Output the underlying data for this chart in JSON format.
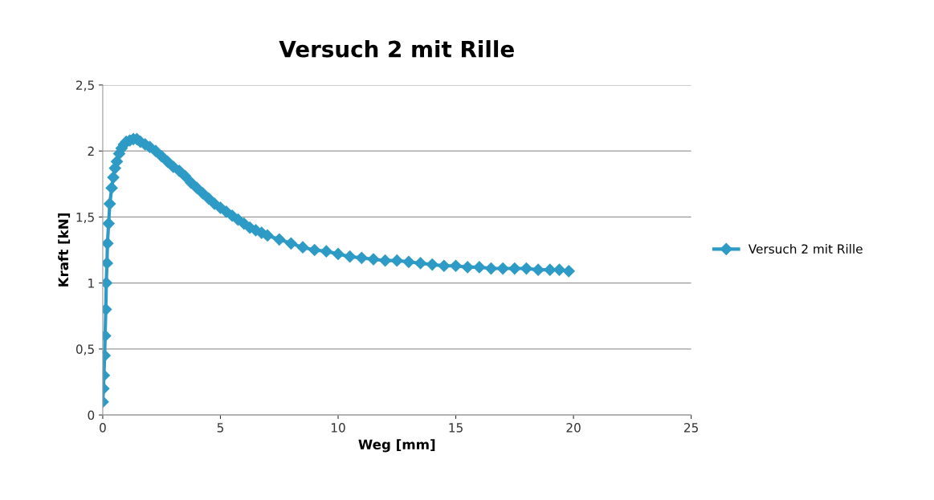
{
  "chart_data": {
    "type": "line",
    "title": "Versuch 2 mit Rille",
    "xlabel": "Weg [mm]",
    "ylabel": "Kraft [kN]",
    "xlim": [
      0,
      25
    ],
    "xticks": [
      0,
      5,
      10,
      15,
      20,
      25
    ],
    "ylim": [
      0,
      2.5
    ],
    "yticks": [
      0,
      {
        "value": 0.5,
        "label": "0,5"
      },
      1,
      {
        "value": 1.5,
        "label": "1,5"
      },
      2,
      {
        "value": 2.5,
        "label": "2,5"
      }
    ],
    "grid": "y",
    "legend": "right",
    "marker": "diamond",
    "line_style": "solid",
    "series": [
      {
        "name": "Versuch 2 mit Rille",
        "color": "#2e9bc6",
        "x": [
          0.0,
          0.03,
          0.05,
          0.08,
          0.1,
          0.13,
          0.15,
          0.18,
          0.2,
          0.25,
          0.3,
          0.38,
          0.45,
          0.52,
          0.6,
          0.7,
          0.8,
          0.9,
          1.0,
          1.15,
          1.3,
          1.45,
          1.6,
          1.8,
          2.0,
          2.25,
          2.5,
          2.75,
          3.0,
          3.25,
          3.5,
          3.75,
          4.0,
          4.25,
          4.5,
          4.75,
          5.0,
          5.25,
          5.5,
          5.75,
          6.0,
          6.25,
          6.5,
          6.75,
          7.0,
          7.5,
          8.0,
          8.5,
          9.0,
          9.5,
          10.0,
          10.5,
          11.0,
          11.5,
          12.0,
          12.5,
          13.0,
          13.5,
          14.0,
          14.5,
          15.0,
          15.5,
          16.0,
          16.5,
          17.0,
          17.5,
          18.0,
          18.5,
          19.0,
          19.4,
          19.8
        ],
        "values": [
          0.1,
          0.2,
          0.3,
          0.45,
          0.6,
          0.8,
          1.0,
          1.15,
          1.3,
          1.45,
          1.6,
          1.72,
          1.8,
          1.87,
          1.92,
          1.98,
          2.02,
          2.05,
          2.07,
          2.08,
          2.09,
          2.09,
          2.07,
          2.05,
          2.03,
          2.0,
          1.96,
          1.92,
          1.88,
          1.85,
          1.81,
          1.76,
          1.72,
          1.68,
          1.64,
          1.6,
          1.57,
          1.54,
          1.51,
          1.48,
          1.45,
          1.42,
          1.4,
          1.38,
          1.36,
          1.33,
          1.3,
          1.27,
          1.25,
          1.24,
          1.22,
          1.2,
          1.19,
          1.18,
          1.17,
          1.17,
          1.16,
          1.15,
          1.14,
          1.13,
          1.13,
          1.12,
          1.12,
          1.11,
          1.11,
          1.11,
          1.11,
          1.1,
          1.1,
          1.1,
          1.09
        ]
      }
    ]
  }
}
